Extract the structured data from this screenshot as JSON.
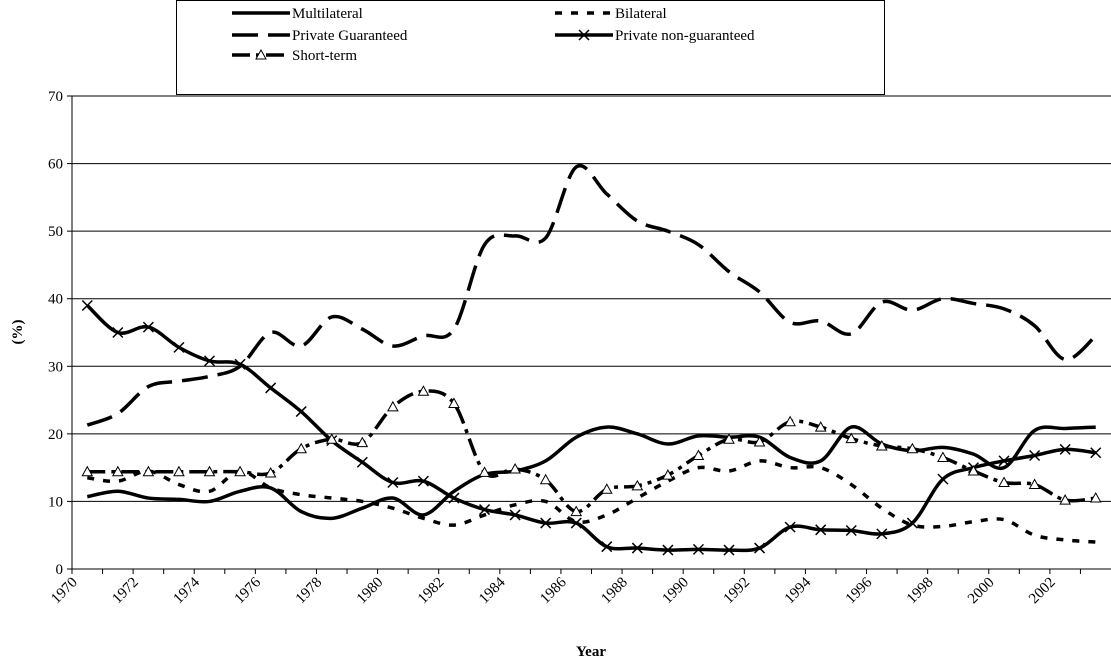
{
  "chart_data": {
    "type": "line",
    "ylabel": "(%)",
    "xlabel": "Year",
    "categories": [
      "1970",
      null,
      "1972",
      null,
      "1974",
      null,
      "1976",
      null,
      "1978",
      null,
      "1980",
      null,
      "1982",
      null,
      "1984",
      null,
      "1986",
      null,
      "1988",
      null,
      "1990",
      null,
      "1992",
      null,
      "1994",
      null,
      "1996",
      null,
      "1998",
      null,
      "2000",
      null,
      "2002",
      null
    ],
    "ylim": [
      0,
      70
    ],
    "yticks": [
      0,
      10,
      20,
      30,
      40,
      50,
      60,
      70
    ],
    "grid": true,
    "series": [
      {
        "name": "Multilateral",
        "color": "#000000",
        "line_style": "solid",
        "marker": "none",
        "values": [
          10.7,
          11.5,
          10.5,
          10.3,
          10,
          11.5,
          12,
          8.5,
          7.5,
          9,
          10.5,
          8,
          11.5,
          14,
          14.5,
          16,
          19.5,
          21,
          20,
          18.5,
          19.7,
          19.5,
          19.5,
          16.5,
          16,
          21,
          18.5,
          17.5,
          18,
          17,
          15,
          20.5,
          20.8,
          21
        ]
      },
      {
        "name": "Bilateral",
        "color": "#000000",
        "line_style": "dashed",
        "marker": "none",
        "values": [
          13.5,
          13,
          14.5,
          12.5,
          11.5,
          14.5,
          12,
          11,
          10.5,
          10,
          9,
          7.5,
          6.5,
          8,
          9.5,
          10,
          7,
          8,
          10.5,
          13,
          15,
          14.5,
          16,
          15,
          15,
          12.5,
          9,
          6.5,
          6.3,
          7,
          7.3,
          5,
          4.3,
          4
        ]
      },
      {
        "name": "Private Guaranteed",
        "color": "#000000",
        "line_style": "long-dashed",
        "marker": "none",
        "values": [
          21.3,
          23,
          27,
          27.8,
          28.5,
          30,
          35,
          33,
          37.3,
          35.5,
          33,
          34.5,
          35.5,
          48,
          49.3,
          49,
          59.5,
          55.5,
          51.5,
          50,
          48,
          44,
          41,
          36.5,
          36.7,
          34.8,
          39.5,
          38.3,
          40,
          39.3,
          38.5,
          36,
          31,
          34.5
        ]
      },
      {
        "name": "Private non-guaranteed",
        "color": "#000000",
        "line_style": "solid",
        "marker": "x",
        "values": [
          39,
          35,
          35.8,
          32.8,
          30.8,
          30.3,
          26.8,
          23.3,
          19,
          15.8,
          12.8,
          13,
          10.5,
          8.8,
          8,
          6.8,
          6.8,
          3.3,
          3.1,
          2.8,
          2.9,
          2.8,
          3.1,
          6.2,
          5.8,
          5.7,
          5.2,
          6.8,
          13.3,
          15,
          16,
          16.8,
          17.7,
          17.2
        ]
      },
      {
        "name": "Short-term",
        "color": "#000000",
        "line_style": "dash-dot",
        "marker": "triangle",
        "values": [
          14.4,
          14.4,
          14.4,
          14.4,
          14.4,
          14.4,
          14.2,
          17.8,
          19.2,
          18.7,
          24,
          26.3,
          24.5,
          14.3,
          14.8,
          13.2,
          8.5,
          11.8,
          12.3,
          13.9,
          16.8,
          19.2,
          18.8,
          21.8,
          21,
          19.3,
          18.2,
          17.8,
          16.5,
          14.5,
          12.8,
          12.5,
          10.2,
          10.5
        ]
      }
    ]
  }
}
